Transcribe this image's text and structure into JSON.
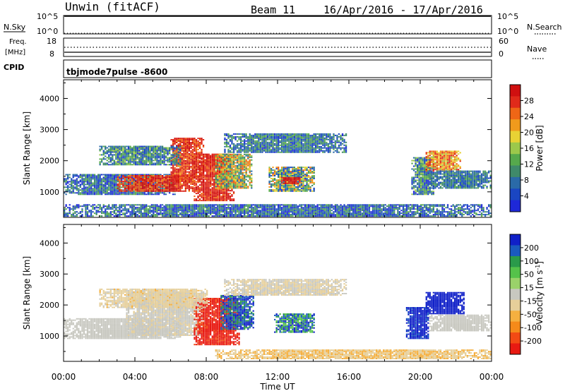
{
  "header": {
    "station": "Unwin (fitACF)",
    "beam": "Beam 11",
    "dates": "16/Apr/2016 - 17/Apr/2016"
  },
  "top_panels": {
    "nsky_label": "N.Sky",
    "nsky_ticks": [
      "10^5",
      "10^0"
    ],
    "nsky_right_ticks": [
      "10^5",
      "10^0"
    ],
    "nsearch_label": "N.Search",
    "freq_label_1": "Freq.",
    "freq_label_2": "[MHz]",
    "freq_ticks": [
      "18",
      "8"
    ],
    "nave_ticks": [
      "60",
      "0"
    ],
    "nave_label": "Nave",
    "cpid_label": "CPID",
    "cpid_value": "tbjmode7pulse  -8600"
  },
  "colors": {
    "power": [
      "#1e28d8",
      "#1a46c2",
      "#2a6aa8",
      "#3f8a6a",
      "#56a94c",
      "#9cc84b",
      "#e8d234",
      "#f09a1c",
      "#ee6616",
      "#e02a1a",
      "#d01010"
    ],
    "velocity": [
      "#e81a12",
      "#f24a14",
      "#f58a1a",
      "#f5b040",
      "#e6cf9a",
      "#c8c8c0",
      "#9ad26a",
      "#55c24a",
      "#2a9a4a",
      "#1a5abf",
      "#1020c8"
    ]
  },
  "chart_data": [
    {
      "type": "heatmap",
      "name": "power",
      "ylabel": "Slant Range [km]",
      "xlabel": "",
      "ylim": [
        180,
        4600
      ],
      "yticks": [
        "1000",
        "2000",
        "3000",
        "4000"
      ],
      "colorbar_label": "Power [dB]",
      "colorbar_ticks": [
        "4",
        "8",
        "12",
        "16",
        "20",
        "24",
        "28"
      ],
      "regions": [
        {
          "t0": 0.0,
          "t1": 6.2,
          "r0": 900,
          "r1": 1550,
          "value": 8,
          "spread": 6
        },
        {
          "t0": 3.0,
          "t1": 7.5,
          "r0": 1000,
          "r1": 1500,
          "value": 26,
          "spread": 4
        },
        {
          "t0": 6.0,
          "t1": 7.8,
          "r0": 1300,
          "r1": 2700,
          "value": 26,
          "spread": 4
        },
        {
          "t0": 7.3,
          "t1": 9.5,
          "r0": 700,
          "r1": 2200,
          "value": 27,
          "spread": 3
        },
        {
          "t0": 8.5,
          "t1": 10.5,
          "r0": 1100,
          "r1": 2200,
          "value": 16,
          "spread": 8
        },
        {
          "t0": 11.5,
          "t1": 14.0,
          "r0": 1000,
          "r1": 1800,
          "value": 14,
          "spread": 10
        },
        {
          "t0": 12.2,
          "t1": 13.2,
          "r0": 1250,
          "r1": 1450,
          "value": 28,
          "spread": 2
        },
        {
          "t0": 2.0,
          "t1": 6.5,
          "r0": 1850,
          "r1": 2450,
          "value": 10,
          "spread": 6
        },
        {
          "t0": 9.0,
          "t1": 15.8,
          "r0": 2250,
          "r1": 2850,
          "value": 9,
          "spread": 5
        },
        {
          "t0": 19.5,
          "t1": 20.8,
          "r0": 900,
          "r1": 2100,
          "value": 10,
          "spread": 7
        },
        {
          "t0": 20.3,
          "t1": 22.3,
          "r0": 1650,
          "r1": 2300,
          "value": 22,
          "spread": 6
        },
        {
          "t0": 20.5,
          "t1": 24.0,
          "r0": 1100,
          "r1": 1650,
          "value": 9,
          "spread": 4
        },
        {
          "t0": 0.0,
          "t1": 24.0,
          "r0": 200,
          "r1": 600,
          "value": 8,
          "spread": 6
        }
      ]
    },
    {
      "type": "heatmap",
      "name": "velocity",
      "ylabel": "Slant Range [km]",
      "xlabel": "Time UT",
      "ylim": [
        180,
        4600
      ],
      "yticks": [
        "1000",
        "2000",
        "3000",
        "4000"
      ],
      "xticks": [
        "00:00",
        "04:00",
        "08:00",
        "12:00",
        "16:00",
        "20:00",
        "00:00"
      ],
      "colorbar_label": "Velocity [m s^-1]",
      "colorbar_ticks": [
        "200",
        "100",
        "50",
        "15",
        "-15",
        "-50",
        "-100",
        "-200"
      ],
      "regions": [
        {
          "t0": 0.0,
          "t1": 6.5,
          "r0": 900,
          "r1": 1550,
          "value": 0,
          "spread": 20
        },
        {
          "t0": 3.5,
          "t1": 7.8,
          "r0": 1000,
          "r1": 2400,
          "value": -10,
          "spread": 25
        },
        {
          "t0": 7.3,
          "t1": 9.8,
          "r0": 700,
          "r1": 2200,
          "value": -220,
          "spread": 40
        },
        {
          "t0": 8.8,
          "t1": 10.6,
          "r0": 1200,
          "r1": 2300,
          "value": 180,
          "spread": 60
        },
        {
          "t0": 11.8,
          "t1": 14.0,
          "r0": 1100,
          "r1": 1700,
          "value": 150,
          "spread": 80
        },
        {
          "t0": 2.0,
          "t1": 8.0,
          "r0": 1900,
          "r1": 2500,
          "value": -40,
          "spread": 30
        },
        {
          "t0": 9.0,
          "t1": 15.8,
          "r0": 2300,
          "r1": 2800,
          "value": -20,
          "spread": 20
        },
        {
          "t0": 19.2,
          "t1": 20.5,
          "r0": 900,
          "r1": 1900,
          "value": 220,
          "spread": 40
        },
        {
          "t0": 20.3,
          "t1": 22.5,
          "r0": 1700,
          "r1": 2400,
          "value": 230,
          "spread": 30
        },
        {
          "t0": 20.5,
          "t1": 24.0,
          "r0": 1150,
          "r1": 1650,
          "value": -5,
          "spread": 15
        },
        {
          "t0": 8.5,
          "t1": 24.0,
          "r0": 250,
          "r1": 550,
          "value": -60,
          "spread": 30
        }
      ]
    }
  ]
}
